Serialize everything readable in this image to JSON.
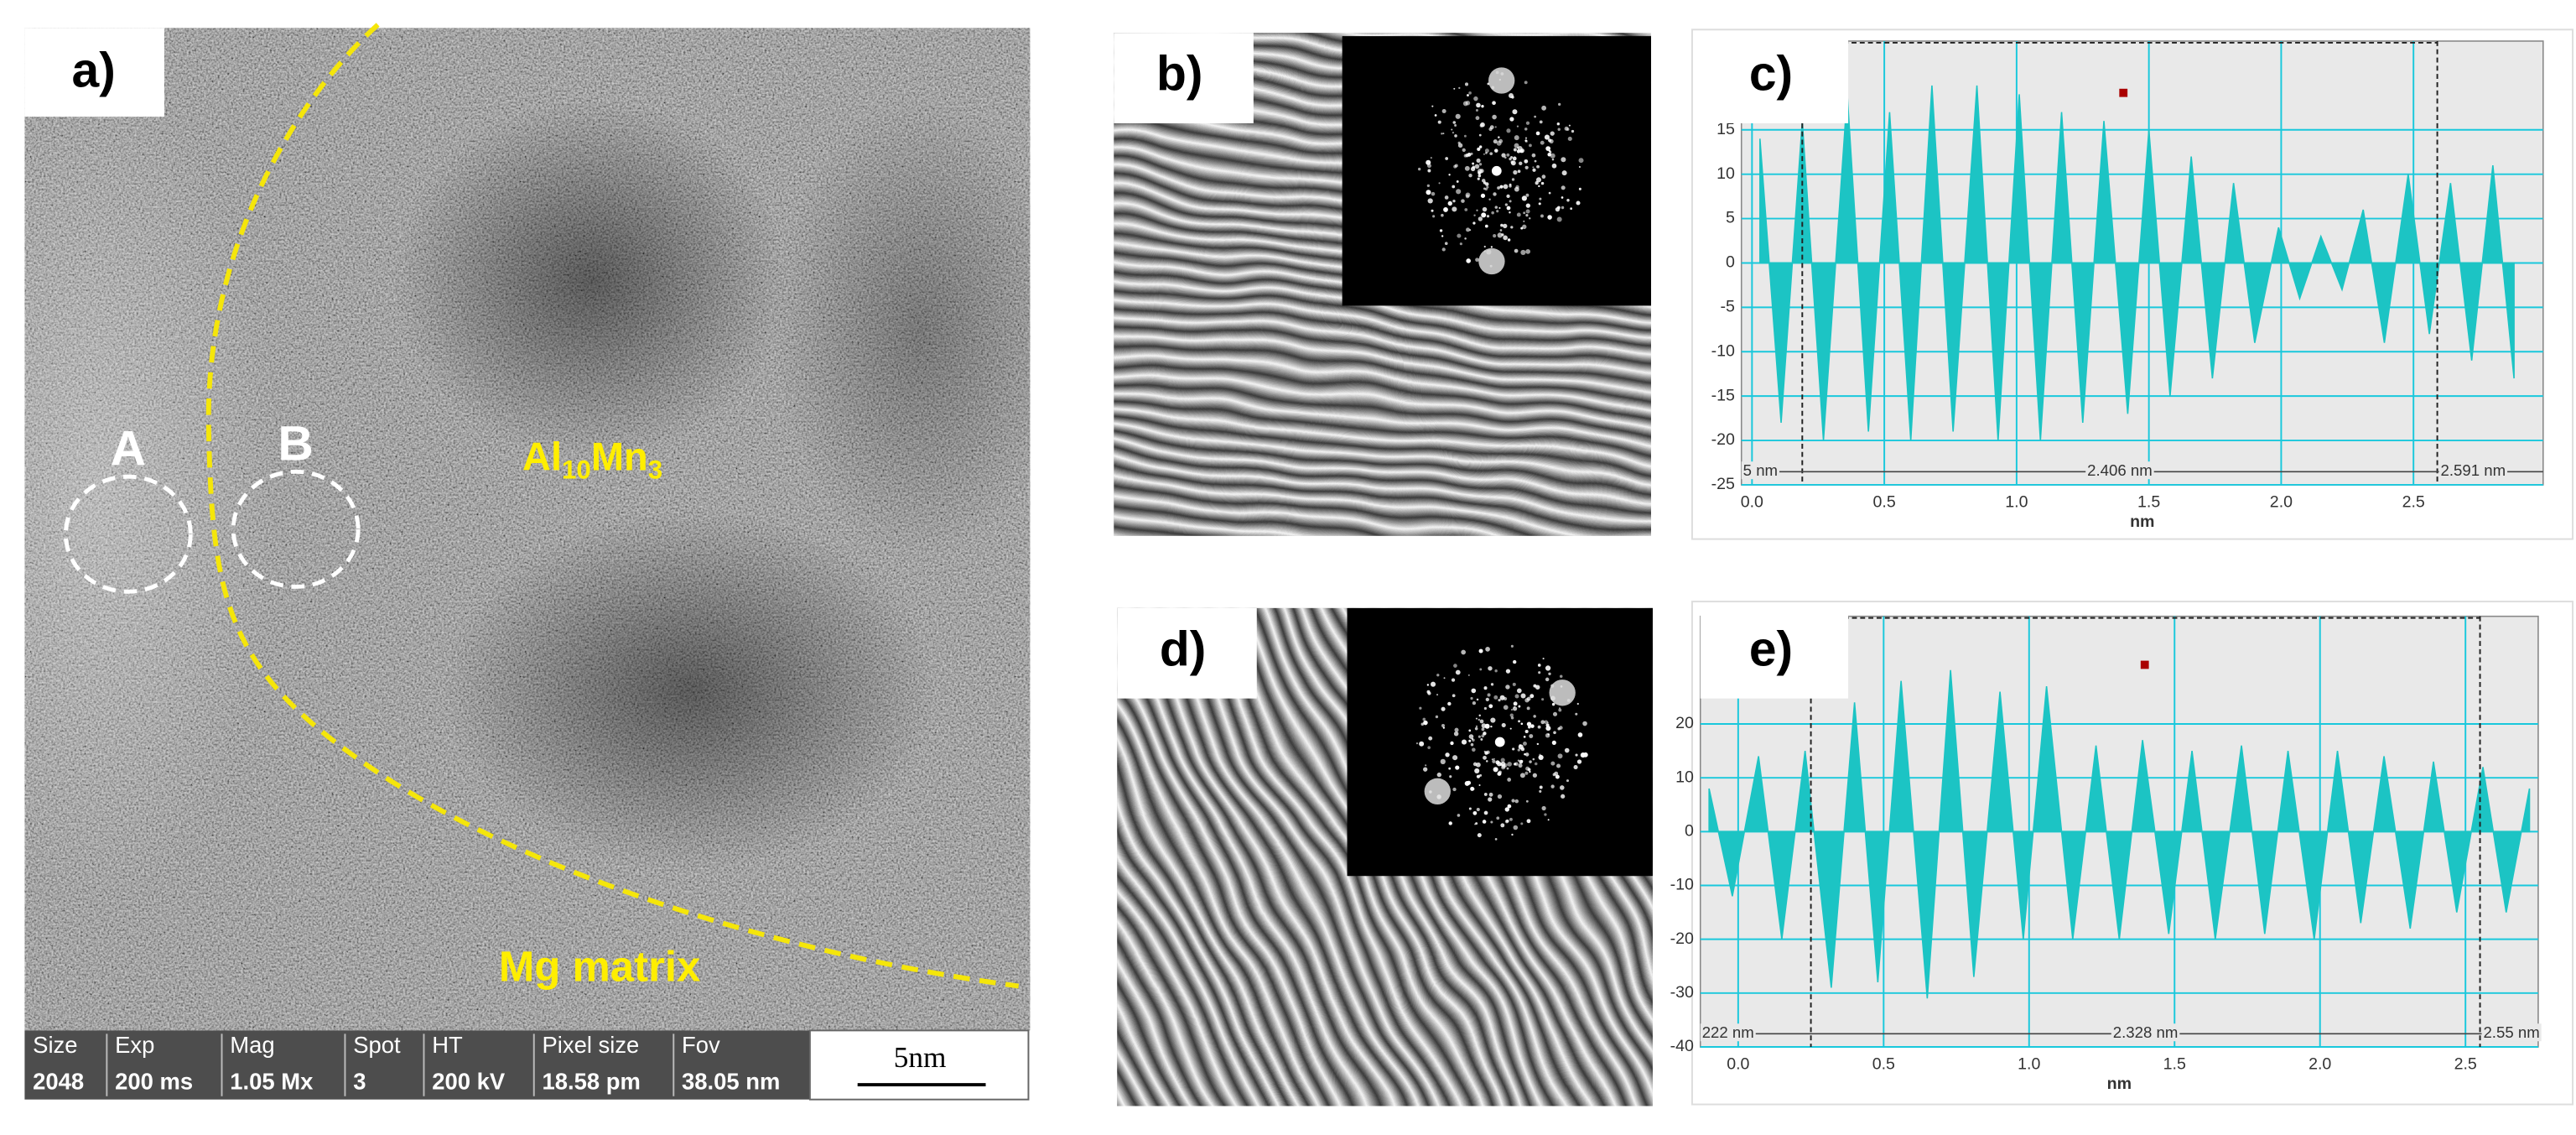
{
  "panels": {
    "a": "a)",
    "b": "b)",
    "c": "c)",
    "d": "d)",
    "e": "e)"
  },
  "tem_image": {
    "region_labels": [
      "A",
      "B"
    ],
    "phase_label": [
      "Al",
      "10",
      "Mn",
      "3"
    ],
    "matrix_label": "Mg matrix",
    "info_bar": {
      "headers": [
        "Size",
        "Exp",
        "Mag",
        "Spot",
        "HT",
        "Pixel size",
        "Fov"
      ],
      "values": [
        "2048",
        "200 ms",
        "1.05 Mx",
        "3",
        "200 kV",
        "18.58 pm",
        "38.05 nm"
      ]
    },
    "scale_bar": "5nm"
  },
  "chart_data": [
    {
      "type": "area",
      "x_label": "nm",
      "color": "#1cc4c4",
      "x": [
        0.03,
        0.11,
        0.19,
        0.27,
        0.36,
        0.44,
        0.52,
        0.6,
        0.68,
        0.76,
        0.85,
        0.93,
        1.01,
        1.09,
        1.17,
        1.25,
        1.33,
        1.42,
        1.5,
        1.58,
        1.66,
        1.74,
        1.82,
        1.9,
        1.99,
        2.07,
        2.15,
        2.23,
        2.31,
        2.39,
        2.48,
        2.56,
        2.64,
        2.72,
        2.8,
        2.88
      ],
      "values": [
        14,
        -18,
        16,
        -20,
        19,
        -19,
        17,
        -20,
        20,
        -19,
        20,
        -20,
        19,
        -20,
        17,
        -18,
        16,
        -17,
        15,
        -15,
        12,
        -13,
        9,
        -9,
        4,
        -4,
        3,
        -3,
        6,
        -9,
        10,
        -8,
        9,
        -11,
        11,
        -13
      ],
      "xlim": [
        -0.04,
        2.99
      ],
      "ylim": [
        -25,
        25
      ],
      "xticks": [
        {
          "value": 0,
          "label": "0.0"
        },
        0.5,
        {
          "value": 1,
          "label": "1.0"
        },
        1.5,
        {
          "value": 2,
          "label": "2.0"
        },
        2.5
      ],
      "yticks": [
        -25,
        -20,
        -15,
        -10,
        -5,
        0,
        5,
        10,
        15
      ],
      "grid": true,
      "cursor_x": [
        0.19,
        2.59
      ],
      "annotations": [
        "5 nm",
        "2.406 nm",
        "2.591 nm"
      ]
    },
    {
      "type": "area",
      "x_label": "nm",
      "color": "#1cc4c4",
      "x": [
        -0.1,
        -0.02,
        0.07,
        0.15,
        0.23,
        0.32,
        0.4,
        0.48,
        0.56,
        0.65,
        0.73,
        0.81,
        0.9,
        0.98,
        1.06,
        1.15,
        1.23,
        1.31,
        1.39,
        1.48,
        1.56,
        1.64,
        1.73,
        1.81,
        1.89,
        1.98,
        2.06,
        2.14,
        2.22,
        2.31,
        2.39,
        2.47,
        2.56,
        2.64,
        2.72
      ],
      "values": [
        8,
        -12,
        14,
        -20,
        15,
        -29,
        24,
        -28,
        28,
        -31,
        30,
        -27,
        26,
        -20,
        27,
        -20,
        16,
        -20,
        17,
        -19,
        15,
        -20,
        16,
        -19,
        15,
        -20,
        15,
        -17,
        14,
        -18,
        13,
        -15,
        12,
        -15,
        8
      ],
      "xlim": [
        -0.13,
        2.75
      ],
      "ylim": [
        -40,
        40
      ],
      "xticks": [
        {
          "value": 0,
          "label": "0.0"
        },
        0.5,
        {
          "value": 1,
          "label": "1.0"
        },
        1.5,
        {
          "value": 2,
          "label": "2.0"
        },
        2.5
      ],
      "yticks": [
        -40,
        -30,
        -20,
        -10,
        0,
        10,
        20
      ],
      "grid": true,
      "cursor_x": [
        0.25,
        2.55
      ],
      "annotations": [
        "222 nm",
        "2.328 nm",
        "2.55 nm"
      ]
    }
  ]
}
